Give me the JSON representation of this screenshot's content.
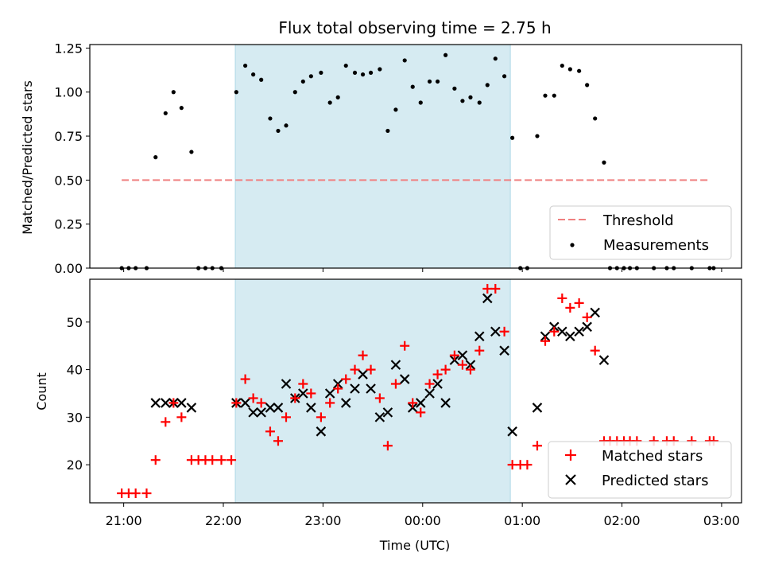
{
  "figure": {
    "title": "Flux total observing time = 2.75 h"
  },
  "chart_data": [
    {
      "type": "scatter",
      "ylabel": "Matched/Predicted stars",
      "xlabel": "",
      "ylim": [
        0,
        1.27
      ],
      "yticks": [
        "0.00",
        "0.25",
        "0.50",
        "0.75",
        "1.00",
        "1.25"
      ],
      "xlim_hours": [
        20.66,
        27.2
      ],
      "shaded_interval_hours": [
        22.12,
        24.88
      ],
      "threshold": {
        "value": 0.5,
        "x_range_hours": [
          20.98,
          26.88
        ],
        "color": "#f08080",
        "style": "dashed"
      },
      "legend": {
        "placement": "lower right",
        "entries": [
          "Threshold",
          "Measurements"
        ]
      },
      "series": [
        {
          "name": "Measurements",
          "color": "#000000",
          "x_hours": [
            20.98,
            21.05,
            21.12,
            21.23,
            21.32,
            21.42,
            21.5,
            21.58,
            21.68,
            21.75,
            21.82,
            21.89,
            21.98,
            22.13,
            22.22,
            22.3,
            22.38,
            22.47,
            22.55,
            22.63,
            22.72,
            22.8,
            22.88,
            22.98,
            23.07,
            23.15,
            23.23,
            23.32,
            23.4,
            23.48,
            23.57,
            23.65,
            23.73,
            23.82,
            23.9,
            23.98,
            24.07,
            24.15,
            24.23,
            24.32,
            24.4,
            24.48,
            24.57,
            24.65,
            24.73,
            24.82,
            24.9,
            24.98,
            25.05,
            25.15,
            25.23,
            25.32,
            25.4,
            25.48,
            25.57,
            25.65,
            25.73,
            25.82,
            25.88,
            25.95,
            26.02,
            26.08,
            26.15,
            26.32,
            26.45,
            26.52,
            26.7,
            26.88,
            26.92
          ],
          "y": [
            0,
            0,
            0,
            0,
            0.63,
            0.88,
            1.0,
            0.91,
            0.66,
            0,
            0,
            0,
            0,
            1.0,
            1.15,
            1.1,
            1.07,
            0.85,
            0.78,
            0.81,
            1.0,
            1.06,
            1.09,
            1.11,
            0.94,
            0.97,
            1.15,
            1.11,
            1.1,
            1.11,
            1.13,
            0.78,
            0.9,
            1.18,
            1.03,
            0.94,
            1.06,
            1.06,
            1.21,
            1.02,
            0.95,
            0.97,
            0.94,
            1.04,
            1.19,
            1.09,
            0.74,
            0,
            0,
            0.75,
            0.98,
            0.98,
            1.15,
            1.13,
            1.12,
            1.04,
            0.85,
            0.6,
            0,
            0,
            0,
            0,
            0,
            0,
            0,
            0,
            0,
            0,
            0
          ]
        }
      ]
    },
    {
      "type": "scatter",
      "ylabel": "Count",
      "xlabel": "Time (UTC)",
      "ylim": [
        12,
        59
      ],
      "yticks": [
        "20",
        "30",
        "40",
        "50"
      ],
      "xlim_hours": [
        20.66,
        27.2
      ],
      "xticks": [
        {
          "hour": 21,
          "label": "21:00"
        },
        {
          "hour": 22,
          "label": "22:00"
        },
        {
          "hour": 23,
          "label": "23:00"
        },
        {
          "hour": 24,
          "label": "00:00"
        },
        {
          "hour": 25,
          "label": "01:00"
        },
        {
          "hour": 26,
          "label": "02:00"
        },
        {
          "hour": 27,
          "label": "03:00"
        }
      ],
      "shaded_interval_hours": [
        22.12,
        24.88
      ],
      "legend": {
        "placement": "lower right",
        "entries": [
          "Matched stars",
          "Predicted stars"
        ]
      },
      "series": [
        {
          "name": "Matched stars",
          "marker": "plus",
          "color": "#ff0000",
          "x_hours": [
            20.98,
            21.05,
            21.12,
            21.23,
            21.32,
            21.42,
            21.5,
            21.58,
            21.68,
            21.75,
            21.82,
            21.89,
            21.98,
            22.08,
            22.13,
            22.22,
            22.3,
            22.38,
            22.47,
            22.55,
            22.63,
            22.72,
            22.8,
            22.88,
            22.98,
            23.07,
            23.15,
            23.23,
            23.32,
            23.4,
            23.48,
            23.57,
            23.65,
            23.73,
            23.82,
            23.9,
            23.98,
            24.07,
            24.15,
            24.23,
            24.32,
            24.4,
            24.48,
            24.57,
            24.65,
            24.73,
            24.82,
            24.9,
            24.98,
            25.05,
            25.15,
            25.23,
            25.32,
            25.4,
            25.48,
            25.57,
            25.65,
            25.73,
            25.82,
            25.88,
            25.95,
            26.02,
            26.08,
            26.15,
            26.32,
            26.45,
            26.52,
            26.7,
            26.88,
            26.92
          ],
          "y": [
            14,
            14,
            14,
            14,
            21,
            29,
            33,
            30,
            21,
            21,
            21,
            21,
            21,
            21,
            33,
            38,
            34,
            33,
            27,
            25,
            30,
            34,
            37,
            35,
            30,
            33,
            36,
            38,
            40,
            43,
            40,
            34,
            24,
            37,
            45,
            33,
            31,
            37,
            39,
            40,
            43,
            41,
            40,
            44,
            57,
            57,
            48,
            20,
            20,
            20,
            24,
            46,
            48,
            55,
            53,
            54,
            51,
            44,
            25,
            25,
            25,
            25,
            25,
            25,
            25,
            25,
            25,
            25,
            25,
            25
          ]
        },
        {
          "name": "Predicted stars",
          "marker": "x",
          "color": "#000000",
          "x_hours": [
            21.32,
            21.42,
            21.5,
            21.58,
            21.68,
            22.13,
            22.22,
            22.3,
            22.38,
            22.47,
            22.55,
            22.63,
            22.72,
            22.8,
            22.88,
            22.98,
            23.07,
            23.15,
            23.23,
            23.32,
            23.4,
            23.48,
            23.57,
            23.65,
            23.73,
            23.82,
            23.9,
            23.98,
            24.07,
            24.15,
            24.23,
            24.32,
            24.4,
            24.48,
            24.57,
            24.65,
            24.73,
            24.82,
            24.9,
            25.15,
            25.23,
            25.32,
            25.4,
            25.48,
            25.57,
            25.65,
            25.73,
            25.82
          ],
          "y": [
            33,
            33,
            33,
            33,
            32,
            33,
            33,
            31,
            31,
            32,
            32,
            37,
            34,
            35,
            32,
            27,
            35,
            37,
            33,
            36,
            39,
            36,
            30,
            31,
            41,
            38,
            32,
            33,
            35,
            37,
            33,
            42,
            43,
            41,
            47,
            55,
            48,
            44,
            27,
            32,
            47,
            49,
            48,
            47,
            48,
            49,
            52,
            42
          ]
        }
      ]
    }
  ]
}
